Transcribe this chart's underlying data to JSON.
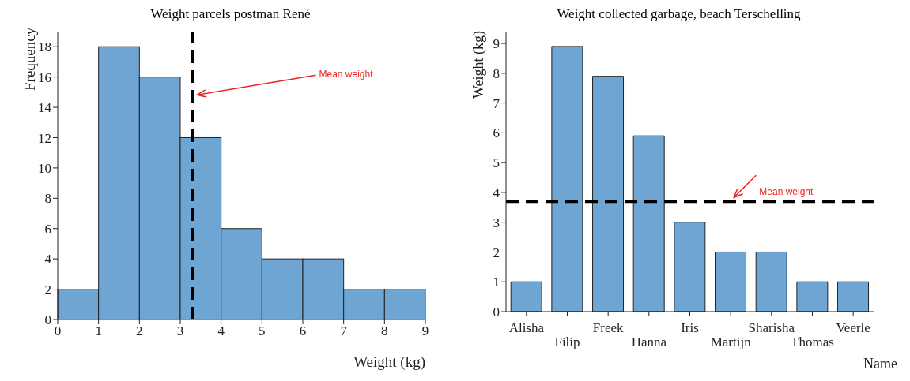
{
  "chart_data": [
    {
      "type": "histogram",
      "title": "Weight parcels postman René",
      "xlabel": "Weight (kg)",
      "ylabel": "Frequency",
      "bins": [
        0,
        1,
        2,
        3,
        4,
        5,
        6,
        7,
        8,
        9
      ],
      "values": [
        2,
        18,
        16,
        12,
        6,
        4,
        4,
        2,
        2
      ],
      "color": "#6fa5d3",
      "xlim": [
        0,
        9
      ],
      "xticks": [
        0,
        1,
        2,
        3,
        4,
        5,
        6,
        7,
        8,
        9
      ],
      "ylim": [
        0,
        19
      ],
      "yticks": [
        0,
        2,
        4,
        6,
        8,
        10,
        12,
        14,
        16,
        18
      ],
      "ref_lines": [
        {
          "axis": "x",
          "value": 3.3,
          "label": "Mean weight",
          "color": "#000000",
          "line_style": "dashed"
        }
      ]
    },
    {
      "type": "bar",
      "title": "Weight collected garbage, beach Terschelling",
      "xlabel": "Name",
      "ylabel": "Weight (kg)",
      "categories": [
        "Alisha",
        "Filip",
        "Freek",
        "Hanna",
        "Iris",
        "Martijn",
        "Sharisha",
        "Thomas",
        "Veerle"
      ],
      "values": [
        1,
        8.9,
        7.9,
        5.9,
        3,
        2,
        2,
        1,
        1
      ],
      "color": "#6fa5d3",
      "ylim": [
        0,
        9.4
      ],
      "yticks": [
        0,
        1,
        2,
        3,
        4,
        5,
        6,
        7,
        8,
        9
      ],
      "ref_lines": [
        {
          "axis": "y",
          "value": 3.7,
          "label": "Mean weight",
          "color": "#000000",
          "line_style": "dashed"
        }
      ]
    }
  ]
}
